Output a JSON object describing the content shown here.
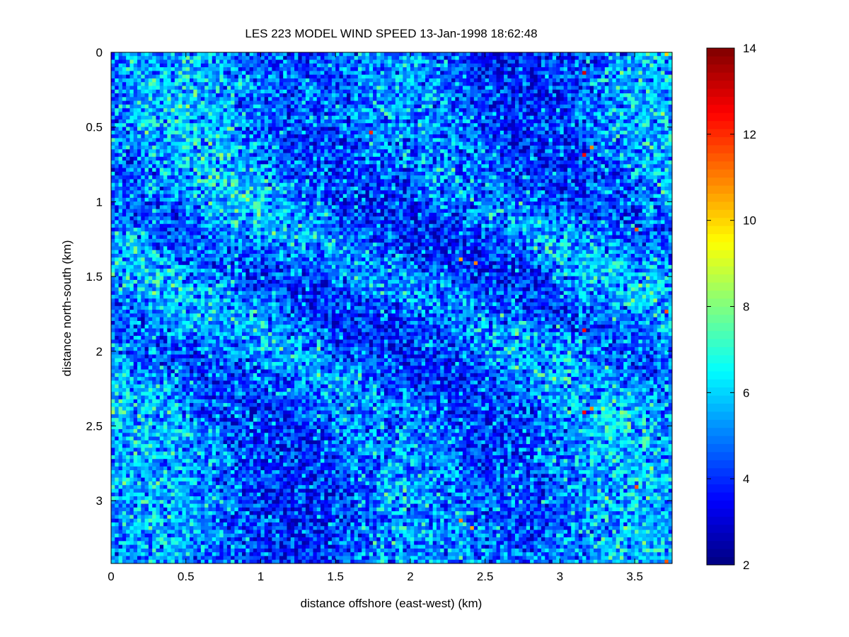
{
  "chart_data": {
    "type": "heatmap",
    "title": "LES 223 MODEL WIND SPEED 13-Jan-1998 18:62:48",
    "xlabel": "distance offshore (east-west) (km)",
    "ylabel": "distance north-south (km)",
    "xlim": [
      0,
      3.75
    ],
    "ylim": [
      0,
      3.42
    ],
    "y_reversed": true,
    "x_ticks": [
      0,
      0.5,
      1,
      1.5,
      2,
      2.5,
      3,
      3.5
    ],
    "x_tick_labels": [
      "0",
      "0.5",
      "1",
      "1.5",
      "2",
      "2.5",
      "3",
      "3.5"
    ],
    "y_ticks": [
      0,
      0.5,
      1,
      1.5,
      2,
      2.5,
      3
    ],
    "y_tick_labels": [
      "0",
      "0.5",
      "1",
      "1.5",
      "2",
      "2.5",
      "3"
    ],
    "colorbar": {
      "colormap": "jet",
      "range": [
        2,
        14
      ],
      "ticks": [
        2,
        4,
        6,
        8,
        10,
        12,
        14
      ],
      "tick_labels": [
        "2",
        "4",
        "6",
        "8",
        "10",
        "12",
        "14"
      ]
    },
    "grid": false,
    "field": {
      "cols": 150,
      "rows": 137,
      "typical_range": [
        2.5,
        8.5
      ],
      "mean": 4.8,
      "streak_orientation": "diagonal, upper-left to lower-right",
      "peaks": [
        {
          "x": 3.16,
          "y": 0.13,
          "value": 13.0
        },
        {
          "x": 1.72,
          "y": 0.52,
          "value": 12.0
        },
        {
          "x": 3.16,
          "y": 0.67,
          "value": 12.5
        },
        {
          "x": 3.21,
          "y": 0.62,
          "value": 11.0
        },
        {
          "x": 3.5,
          "y": 1.18,
          "value": 11.5
        },
        {
          "x": 2.42,
          "y": 1.41,
          "value": 11.0
        },
        {
          "x": 2.32,
          "y": 1.37,
          "value": 10.5
        },
        {
          "x": 3.69,
          "y": 1.72,
          "value": 11.5
        },
        {
          "x": 3.16,
          "y": 1.84,
          "value": 12.5
        },
        {
          "x": 3.16,
          "y": 2.39,
          "value": 12.5
        },
        {
          "x": 3.21,
          "y": 2.36,
          "value": 11.0
        },
        {
          "x": 3.51,
          "y": 2.9,
          "value": 11.5
        },
        {
          "x": 2.33,
          "y": 3.11,
          "value": 11.0
        },
        {
          "x": 2.4,
          "y": 3.18,
          "value": 10.5
        },
        {
          "x": 3.7,
          "y": 3.42,
          "value": 11.5
        },
        {
          "x": 3.7,
          "y": 0.0,
          "value": 10.0
        }
      ]
    }
  }
}
